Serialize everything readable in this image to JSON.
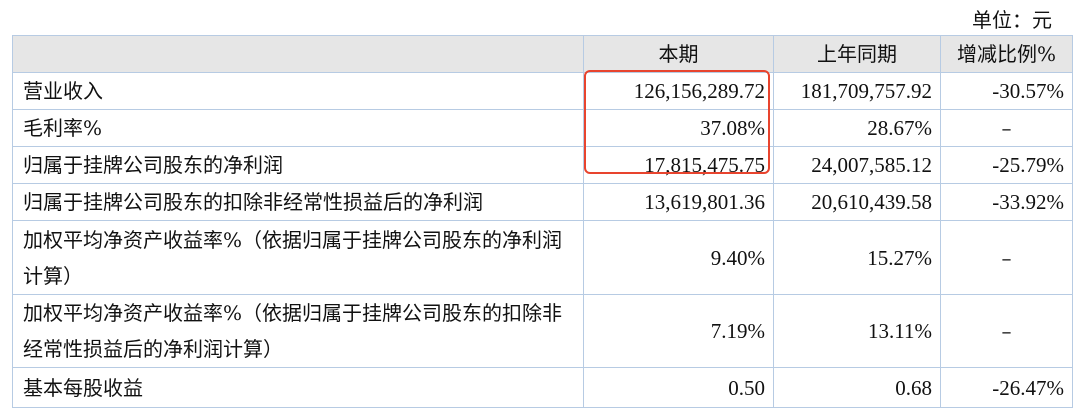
{
  "unit_label": "单位：元",
  "highlight_color": "#e8442e",
  "headers": [
    "",
    "本期",
    "上年同期",
    "增减比例%"
  ],
  "rows": [
    {
      "label": "营业收入",
      "current": "126,156,289.72",
      "prior": "181,709,757.92",
      "change": "-30.57%"
    },
    {
      "label": "毛利率%",
      "current": "37.08%",
      "prior": "28.67%",
      "change": "–"
    },
    {
      "label": "归属于挂牌公司股东的净利润",
      "current": "17,815,475.75",
      "prior": "24,007,585.12",
      "change": "-25.79%"
    },
    {
      "label": "归属于挂牌公司股东的扣除非经常性损益后的净利润",
      "current": "13,619,801.36",
      "prior": "20,610,439.58",
      "change": "-33.92%"
    },
    {
      "label": "加权平均净资产收益率%（依据归属于挂牌公司股东的净利润计算）",
      "current": "9.40%",
      "prior": "15.27%",
      "change": "–"
    },
    {
      "label": "加权平均净资产收益率%（依据归属于挂牌公司股东的扣除非经常性损益后的净利润计算）",
      "current": "7.19%",
      "prior": "13.11%",
      "change": "–"
    },
    {
      "label": "基本每股收益",
      "current": "0.50",
      "prior": "0.68",
      "change": "-26.47%"
    }
  ]
}
